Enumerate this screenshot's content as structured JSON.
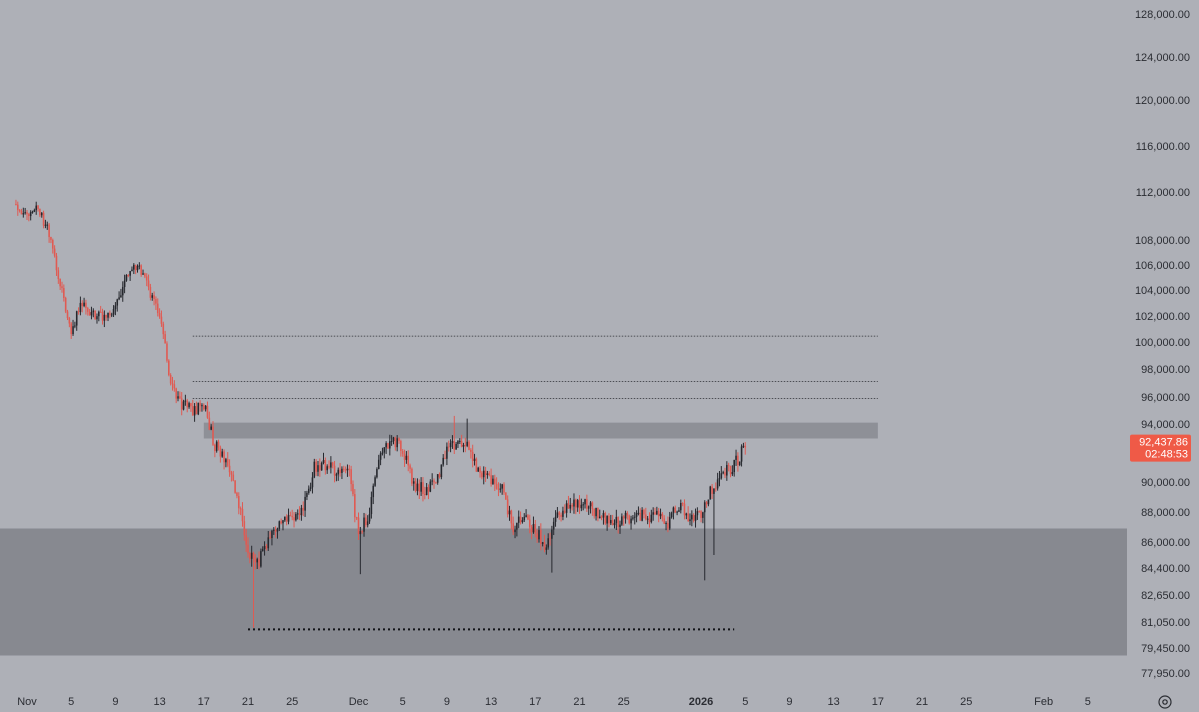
{
  "chart_data": {
    "type": "candlestick",
    "title": "",
    "ylim": [
      77950,
      128000
    ],
    "xlim": [
      "2025-10-31",
      "2026-02-08"
    ],
    "y_ticks": [
      "128,000.00",
      "124,000.00",
      "120,000.00",
      "116,000.00",
      "112,000.00",
      "108,000.00",
      "106,000.00",
      "104,000.00",
      "102,000.00",
      "100,000.00",
      "98,000.00",
      "96,000.00",
      "94,000.00",
      "90,000.00",
      "88,000.00",
      "86,000.00",
      "84,400.00",
      "82,650.00",
      "81,050.00",
      "79,450.00",
      "77,950.00"
    ],
    "x_ticks": [
      {
        "label": "Nov",
        "date": "2025-11-01",
        "bold": false
      },
      {
        "label": "5",
        "date": "2025-11-05",
        "bold": false
      },
      {
        "label": "9",
        "date": "2025-11-09",
        "bold": false
      },
      {
        "label": "13",
        "date": "2025-11-13",
        "bold": false
      },
      {
        "label": "17",
        "date": "2025-11-17",
        "bold": false
      },
      {
        "label": "21",
        "date": "2025-11-21",
        "bold": false
      },
      {
        "label": "25",
        "date": "2025-11-25",
        "bold": false
      },
      {
        "label": "Dec",
        "date": "2025-12-01",
        "bold": false
      },
      {
        "label": "5",
        "date": "2025-12-05",
        "bold": false
      },
      {
        "label": "9",
        "date": "2025-12-09",
        "bold": false
      },
      {
        "label": "13",
        "date": "2025-12-13",
        "bold": false
      },
      {
        "label": "17",
        "date": "2025-12-17",
        "bold": false
      },
      {
        "label": "21",
        "date": "2025-12-21",
        "bold": false
      },
      {
        "label": "25",
        "date": "2025-12-25",
        "bold": false
      },
      {
        "label": "2026",
        "date": "2026-01-01",
        "bold": true
      },
      {
        "label": "5",
        "date": "2026-01-05",
        "bold": false
      },
      {
        "label": "9",
        "date": "2026-01-09",
        "bold": false
      },
      {
        "label": "13",
        "date": "2026-01-13",
        "bold": false
      },
      {
        "label": "17",
        "date": "2026-01-17",
        "bold": false
      },
      {
        "label": "21",
        "date": "2026-01-21",
        "bold": false
      },
      {
        "label": "25",
        "date": "2026-01-25",
        "bold": false
      },
      {
        "label": "Feb",
        "date": "2026-02-01",
        "bold": false
      },
      {
        "label": "5",
        "date": "2026-02-05",
        "bold": false
      }
    ],
    "price_path": [
      [
        "2025-10-31",
        111000
      ],
      [
        "2025-11-01",
        110000
      ],
      [
        "2025-11-02",
        110500
      ],
      [
        "2025-11-03",
        108500
      ],
      [
        "2025-11-04",
        104500
      ],
      [
        "2025-11-05",
        101000
      ],
      [
        "2025-11-06",
        103000
      ],
      [
        "2025-11-07",
        102000
      ],
      [
        "2025-11-08",
        101800
      ],
      [
        "2025-11-09",
        102500
      ],
      [
        "2025-11-10",
        105500
      ],
      [
        "2025-11-11",
        106000
      ],
      [
        "2025-11-12",
        104200
      ],
      [
        "2025-11-13",
        102000
      ],
      [
        "2025-11-14",
        97000
      ],
      [
        "2025-11-15",
        95500
      ],
      [
        "2025-11-16",
        95000
      ],
      [
        "2025-11-17",
        95500
      ],
      [
        "2025-11-18",
        92500
      ],
      [
        "2025-11-19",
        91500
      ],
      [
        "2025-11-20",
        89000
      ],
      [
        "2025-11-21",
        85500
      ],
      [
        "2025-11-22",
        84800
      ],
      [
        "2025-11-23",
        86500
      ],
      [
        "2025-11-24",
        87500
      ],
      [
        "2025-11-25",
        87800
      ],
      [
        "2025-11-26",
        88200
      ],
      [
        "2025-11-27",
        91000
      ],
      [
        "2025-11-28",
        91200
      ],
      [
        "2025-11-29",
        90800
      ],
      [
        "2025-11-30",
        91300
      ],
      [
        "2025-12-01",
        86500
      ],
      [
        "2025-12-02",
        88000
      ],
      [
        "2025-12-03",
        92000
      ],
      [
        "2025-12-04",
        93000
      ],
      [
        "2025-12-05",
        92200
      ],
      [
        "2025-12-06",
        89800
      ],
      [
        "2025-12-07",
        89500
      ],
      [
        "2025-12-08",
        90000
      ],
      [
        "2025-12-09",
        92000
      ],
      [
        "2025-12-10",
        92800
      ],
      [
        "2025-12-11",
        92300
      ],
      [
        "2025-12-12",
        90500
      ],
      [
        "2025-12-13",
        90200
      ],
      [
        "2025-12-14",
        89500
      ],
      [
        "2025-12-15",
        87000
      ],
      [
        "2025-12-16",
        87500
      ],
      [
        "2025-12-17",
        86800
      ],
      [
        "2025-12-18",
        85500
      ],
      [
        "2025-12-19",
        88000
      ],
      [
        "2025-12-20",
        88300
      ],
      [
        "2025-12-21",
        88500
      ],
      [
        "2025-12-22",
        88400
      ],
      [
        "2025-12-23",
        87600
      ],
      [
        "2025-12-24",
        87300
      ],
      [
        "2025-12-25",
        87500
      ],
      [
        "2025-12-26",
        87800
      ],
      [
        "2025-12-27",
        87700
      ],
      [
        "2025-12-28",
        87800
      ],
      [
        "2025-12-29",
        87300
      ],
      [
        "2025-12-30",
        88500
      ],
      [
        "2025-12-31",
        87600
      ],
      [
        "2026-01-01",
        88000
      ],
      [
        "2026-01-02",
        89500
      ],
      [
        "2026-01-03",
        90500
      ],
      [
        "2026-01-04",
        91200
      ],
      [
        "2026-01-05",
        92437.86
      ]
    ],
    "resistance_zone": [
      93000,
      94100
    ],
    "demand_zone": [
      79000,
      86900
    ],
    "dotted_levels": [
      {
        "value": 100450,
        "from": "2025-11-16",
        "to": "2026-01-17"
      },
      {
        "value": 97100,
        "from": "2025-11-16",
        "to": "2026-01-17"
      },
      {
        "value": 95900,
        "from": "2025-11-16",
        "to": "2026-01-17"
      }
    ],
    "support_level": {
      "value": 80600,
      "from": "2025-11-21",
      "to": "2026-01-04"
    },
    "current_price": "92,437.86",
    "countdown": "02:48:53",
    "colors": {
      "up": "#26282e",
      "down": "#e05a52",
      "badge": "#ef5a47",
      "resistance": "#8e9097",
      "demand": "#878990",
      "background": "#aeb0b7"
    }
  },
  "ui": {
    "settings_icon": "gear-icon"
  }
}
